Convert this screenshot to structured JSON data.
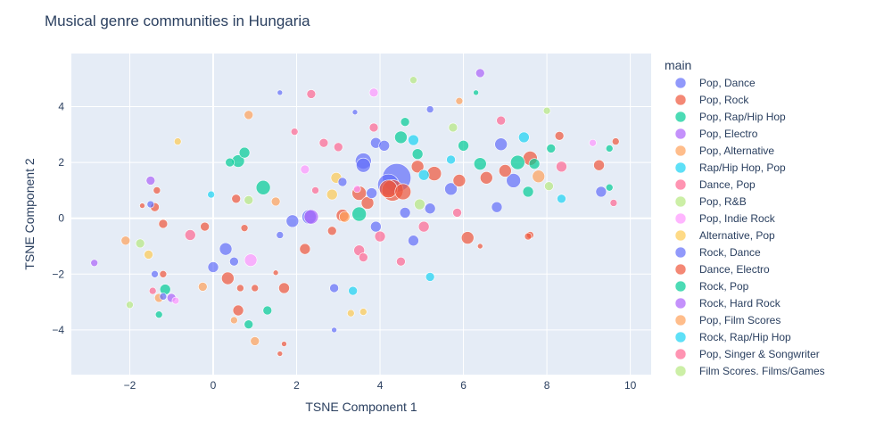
{
  "chart_data": {
    "type": "scatter",
    "title": "Musical genre communities in Hungaria",
    "xlabel": "TSNE Component 1",
    "ylabel": "TSNE Component 2",
    "xlim": [
      -3.4,
      10.5
    ],
    "ylim": [
      -5.6,
      5.9
    ],
    "xticks": [
      -2,
      0,
      2,
      4,
      6,
      8,
      10
    ],
    "yticks": [
      -4,
      -2,
      0,
      2,
      4
    ],
    "grid": true,
    "legend_title": "main",
    "legend_position": "right",
    "series": [
      {
        "name": "Pop, Dance",
        "color": "#636efa",
        "points": [
          [
            4.4,
            1.45,
            16
          ],
          [
            4.2,
            1.2,
            12
          ],
          [
            3.6,
            2.05,
            9
          ],
          [
            3.6,
            1.9,
            8
          ],
          [
            4.6,
            0.2,
            6
          ],
          [
            5.2,
            0.35,
            6
          ],
          [
            5.7,
            1.05,
            7
          ],
          [
            6.9,
            2.65,
            7
          ],
          [
            7.2,
            1.35,
            8
          ],
          [
            9.3,
            0.95,
            6
          ],
          [
            6.8,
            0.4,
            6
          ],
          [
            3.9,
            2.7,
            6
          ],
          [
            4.1,
            2.6,
            6
          ],
          [
            2.3,
            0.05,
            8
          ],
          [
            1.9,
            -0.1,
            7
          ],
          [
            0.3,
            -1.1,
            7
          ],
          [
            0.0,
            -1.75,
            6
          ],
          [
            0.5,
            -1.55,
            5
          ],
          [
            3.9,
            -0.3,
            6
          ],
          [
            4.8,
            -0.8,
            6
          ],
          [
            2.9,
            -2.5,
            5
          ],
          [
            1.6,
            -0.6,
            4
          ],
          [
            3.1,
            1.3,
            5
          ],
          [
            5.2,
            3.9,
            4
          ],
          [
            3.4,
            3.8,
            3
          ],
          [
            1.6,
            4.5,
            3
          ],
          [
            -1.4,
            -2.0,
            4
          ],
          [
            2.9,
            -4.0,
            3
          ],
          [
            3.8,
            0.9,
            6
          ],
          [
            -1.5,
            0.5,
            4
          ],
          [
            -1.2,
            -2.8,
            4
          ]
        ]
      },
      {
        "name": "Pop, Rock",
        "color": "#ef553b",
        "points": [
          [
            4.3,
            1.0,
            12
          ],
          [
            4.2,
            1.05,
            10
          ],
          [
            4.55,
            0.95,
            9
          ],
          [
            3.5,
            0.9,
            8
          ],
          [
            3.7,
            0.55,
            7
          ],
          [
            3.1,
            0.1,
            7
          ],
          [
            5.3,
            1.6,
            8
          ],
          [
            4.9,
            1.85,
            7
          ],
          [
            5.9,
            1.35,
            7
          ],
          [
            6.1,
            -0.7,
            7
          ],
          [
            7.6,
            2.15,
            8
          ],
          [
            7.0,
            1.7,
            7
          ],
          [
            6.55,
            1.45,
            7
          ],
          [
            8.3,
            2.95,
            5
          ],
          [
            9.25,
            1.9,
            6
          ],
          [
            9.65,
            2.75,
            4
          ],
          [
            -1.4,
            0.4,
            5
          ],
          [
            -1.35,
            1.0,
            4
          ],
          [
            -1.7,
            0.45,
            3
          ],
          [
            -1.2,
            -0.2,
            5
          ],
          [
            -1.2,
            -2.0,
            4
          ],
          [
            -0.2,
            -0.3,
            5
          ],
          [
            0.35,
            -2.15,
            7
          ],
          [
            0.55,
            0.7,
            5
          ],
          [
            0.75,
            -0.35,
            4
          ],
          [
            0.65,
            -2.5,
            4
          ],
          [
            1.0,
            -2.5,
            4
          ],
          [
            0.6,
            -3.3,
            6
          ],
          [
            1.7,
            -2.5,
            6
          ],
          [
            2.2,
            -1.1,
            6
          ],
          [
            2.85,
            -0.45,
            5
          ],
          [
            1.5,
            -1.95,
            3
          ],
          [
            1.7,
            -4.5,
            3
          ],
          [
            1.6,
            -4.85,
            3
          ],
          [
            7.6,
            -0.6,
            4
          ],
          [
            7.55,
            -0.65,
            4
          ],
          [
            6.4,
            -1.0,
            3
          ]
        ]
      },
      {
        "name": "Pop, Rap/Hip Hop",
        "color": "#00cc96",
        "points": [
          [
            4.5,
            2.9,
            7
          ],
          [
            4.6,
            3.45,
            5
          ],
          [
            4.9,
            2.3,
            6
          ],
          [
            6.0,
            2.6,
            6
          ],
          [
            6.4,
            1.95,
            7
          ],
          [
            7.3,
            2.0,
            8
          ],
          [
            7.7,
            1.95,
            6
          ],
          [
            8.1,
            2.5,
            5
          ],
          [
            7.55,
            0.95,
            6
          ],
          [
            9.5,
            1.1,
            4
          ],
          [
            9.5,
            2.5,
            4
          ],
          [
            1.2,
            1.1,
            8
          ],
          [
            0.6,
            2.05,
            7
          ],
          [
            0.75,
            2.35,
            6
          ],
          [
            0.4,
            2.0,
            5
          ],
          [
            3.5,
            0.15,
            8
          ],
          [
            -1.15,
            -2.55,
            6
          ],
          [
            -1.3,
            -3.45,
            4
          ],
          [
            1.3,
            -3.3,
            5
          ],
          [
            0.85,
            -3.8,
            5
          ],
          [
            6.3,
            4.5,
            3
          ]
        ]
      },
      {
        "name": "Pop, Electro",
        "color": "#ab63fa",
        "points": [
          [
            2.35,
            0.05,
            8
          ],
          [
            6.4,
            5.2,
            5
          ],
          [
            -1.5,
            1.35,
            5
          ],
          [
            -2.85,
            -1.6,
            4
          ],
          [
            -1.0,
            -2.85,
            5
          ]
        ]
      },
      {
        "name": "Pop, Alternative",
        "color": "#ffa15a",
        "points": [
          [
            0.85,
            3.7,
            5
          ],
          [
            5.9,
            4.2,
            4
          ],
          [
            7.8,
            1.5,
            7
          ],
          [
            -2.1,
            -0.8,
            5
          ],
          [
            -0.25,
            -2.45,
            5
          ],
          [
            1.5,
            0.6,
            5
          ],
          [
            1.0,
            -4.4,
            5
          ],
          [
            0.5,
            -3.65,
            4
          ],
          [
            3.15,
            0.05,
            6
          ],
          [
            -1.3,
            -2.85,
            5
          ]
        ]
      },
      {
        "name": "Rap/Hip Hop, Pop",
        "color": "#19d3f3",
        "points": [
          [
            4.8,
            2.8,
            6
          ],
          [
            5.7,
            2.1,
            5
          ],
          [
            7.45,
            2.9,
            6
          ],
          [
            8.35,
            0.7,
            5
          ],
          [
            5.2,
            -2.1,
            5
          ],
          [
            3.35,
            -2.6,
            5
          ],
          [
            -0.05,
            0.85,
            4
          ],
          [
            5.05,
            1.55,
            6
          ]
        ]
      },
      {
        "name": "Dance, Pop",
        "color": "#ff6692",
        "points": [
          [
            2.35,
            4.45,
            5
          ],
          [
            2.65,
            2.7,
            5
          ],
          [
            3.5,
            -1.15,
            6
          ],
          [
            3.85,
            3.25,
            5
          ],
          [
            4.5,
            -1.55,
            5
          ],
          [
            5.05,
            -0.3,
            6
          ],
          [
            6.9,
            3.5,
            5
          ],
          [
            8.35,
            1.85,
            6
          ],
          [
            9.6,
            0.55,
            4
          ],
          [
            -0.55,
            -0.6,
            6
          ],
          [
            1.95,
            3.1,
            4
          ],
          [
            5.85,
            0.2,
            5
          ],
          [
            3.0,
            2.55,
            5
          ],
          [
            3.6,
            -1.4,
            5
          ],
          [
            2.45,
            1.0,
            4
          ],
          [
            4.0,
            -0.65,
            6
          ],
          [
            -1.45,
            -2.6,
            4
          ]
        ]
      },
      {
        "name": "Pop, R&B",
        "color": "#b6e880",
        "points": [
          [
            4.8,
            4.95,
            4
          ],
          [
            8.0,
            3.85,
            4
          ],
          [
            5.75,
            3.25,
            5
          ],
          [
            8.05,
            1.15,
            5
          ],
          [
            4.95,
            0.5,
            6
          ],
          [
            -1.75,
            -0.9,
            5
          ],
          [
            -2.0,
            -3.1,
            4
          ],
          [
            0.85,
            0.65,
            5
          ]
        ]
      },
      {
        "name": "Pop, Indie Rock",
        "color": "#ff97ff",
        "points": [
          [
            3.85,
            4.5,
            5
          ],
          [
            2.2,
            1.75,
            5
          ],
          [
            0.9,
            -1.5,
            7
          ],
          [
            -0.9,
            -2.95,
            4
          ],
          [
            9.1,
            2.7,
            4
          ],
          [
            3.45,
            1.05,
            4
          ]
        ]
      },
      {
        "name": "Alternative, Pop",
        "color": "#fecb52",
        "points": [
          [
            -0.85,
            2.75,
            4
          ],
          [
            2.95,
            1.45,
            6
          ],
          [
            2.85,
            0.85,
            6
          ],
          [
            3.3,
            -3.4,
            4
          ],
          [
            3.6,
            -3.35,
            4
          ],
          [
            -1.55,
            -1.3,
            5
          ]
        ]
      },
      {
        "name": "Rock, Dance",
        "color": "#636efa",
        "points": []
      },
      {
        "name": "Dance, Electro",
        "color": "#ef553b",
        "points": []
      },
      {
        "name": "Rock, Pop",
        "color": "#00cc96",
        "points": []
      },
      {
        "name": "Rock, Hard Rock",
        "color": "#ab63fa",
        "points": []
      },
      {
        "name": "Pop, Film Scores",
        "color": "#ffa15a",
        "points": []
      },
      {
        "name": "Rock, Rap/Hip Hop",
        "color": "#19d3f3",
        "points": []
      },
      {
        "name": "Pop, Singer & Songwriter",
        "color": "#ff6692",
        "points": []
      },
      {
        "name": "Film Scores. Films/Games",
        "color": "#b6e880",
        "points": []
      }
    ]
  }
}
